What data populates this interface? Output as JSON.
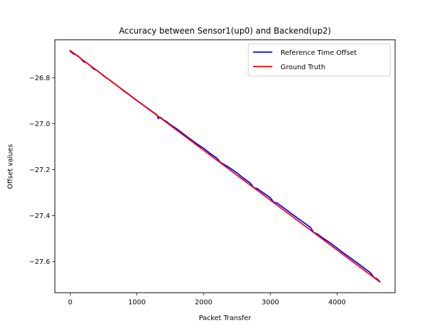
{
  "chart_data": {
    "type": "line",
    "title": "Accuracy between Sensor1(up0) and Backend(up2)",
    "xlabel": "Packet Transfer",
    "ylabel": "Offset values",
    "xlim": [
      -230,
      4870
    ],
    "ylim": [
      -27.735,
      -26.635
    ],
    "xticks": [
      0,
      1000,
      2000,
      3000,
      4000
    ],
    "xtick_labels": [
      "0",
      "1000",
      "2000",
      "3000",
      "4000"
    ],
    "yticks": [
      -26.8,
      -27.0,
      -27.2,
      -27.4,
      -27.6
    ],
    "ytick_labels": [
      "−26.8",
      "−27.0",
      "−27.2",
      "−27.4",
      "−27.6"
    ],
    "grid": false,
    "legend": "top-right",
    "series": [
      {
        "name": "Reference Time Offset",
        "color": "#0000ff",
        "x": [
          0,
          50,
          100,
          150,
          200,
          250,
          300,
          350,
          400,
          500,
          600,
          700,
          800,
          900,
          1000,
          1100,
          1200,
          1300,
          1320,
          1350,
          1400,
          1450,
          1500,
          1600,
          1700,
          1800,
          1900,
          2000,
          2100,
          2200,
          2250,
          2300,
          2400,
          2500,
          2600,
          2700,
          2750,
          2800,
          2900,
          3000,
          3050,
          3100,
          3200,
          3300,
          3400,
          3500,
          3600,
          3650,
          3700,
          3800,
          3900,
          4000,
          4100,
          4200,
          4300,
          4400,
          4500,
          4550,
          4600,
          4640
        ],
        "values": [
          -26.685,
          -26.697,
          -26.702,
          -26.714,
          -26.73,
          -26.736,
          -26.748,
          -26.762,
          -26.768,
          -26.792,
          -26.812,
          -26.834,
          -26.857,
          -26.878,
          -26.9,
          -26.92,
          -26.941,
          -26.962,
          -26.978,
          -26.972,
          -26.984,
          -26.992,
          -27.004,
          -27.023,
          -27.045,
          -27.067,
          -27.088,
          -27.107,
          -27.13,
          -27.15,
          -27.168,
          -27.176,
          -27.194,
          -27.214,
          -27.238,
          -27.258,
          -27.278,
          -27.282,
          -27.302,
          -27.322,
          -27.342,
          -27.345,
          -27.366,
          -27.388,
          -27.409,
          -27.43,
          -27.451,
          -27.473,
          -27.479,
          -27.5,
          -27.519,
          -27.541,
          -27.563,
          -27.584,
          -27.605,
          -27.627,
          -27.648,
          -27.668,
          -27.675,
          -27.686
        ]
      },
      {
        "name": "Ground Truth",
        "color": "#ff0000",
        "x": [
          0,
          4640
        ],
        "values": [
          -26.682,
          -27.688
        ]
      }
    ]
  }
}
